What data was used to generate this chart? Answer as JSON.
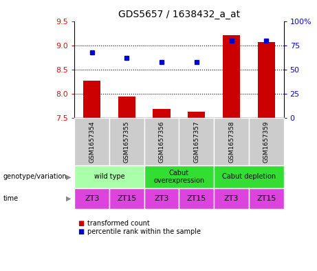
{
  "title": "GDS5657 / 1638432_a_at",
  "samples": [
    "GSM1657354",
    "GSM1657355",
    "GSM1657356",
    "GSM1657357",
    "GSM1657358",
    "GSM1657359"
  ],
  "red_values": [
    8.27,
    7.95,
    7.68,
    7.63,
    9.22,
    9.08
  ],
  "blue_values": [
    68,
    62,
    58,
    58,
    80,
    80
  ],
  "ylim_left": [
    7.5,
    9.5
  ],
  "ylim_right": [
    0,
    100
  ],
  "yticks_left": [
    7.5,
    8.0,
    8.5,
    9.0,
    9.5
  ],
  "yticks_right": [
    0,
    25,
    50,
    75,
    100
  ],
  "ytick_labels_right": [
    "0",
    "25",
    "50",
    "75",
    "100%"
  ],
  "genotype_groups": [
    {
      "label": "wild type",
      "cols": [
        0,
        1
      ],
      "color": "#aaffaa"
    },
    {
      "label": "Cabut\noverexpression",
      "cols": [
        2,
        3
      ],
      "color": "#33dd33"
    },
    {
      "label": "Cabut depletion",
      "cols": [
        4,
        5
      ],
      "color": "#33dd33"
    }
  ],
  "time_labels": [
    "ZT3",
    "ZT15",
    "ZT3",
    "ZT15",
    "ZT3",
    "ZT15"
  ],
  "time_color": "#dd44dd",
  "sample_bg_color": "#cccccc",
  "bar_color": "#cc0000",
  "dot_color": "#0000cc",
  "bar_width": 0.5,
  "left_label_genotype": "genotype/variation",
  "left_label_time": "time",
  "legend_red": "transformed count",
  "legend_blue": "percentile rank within the sample"
}
